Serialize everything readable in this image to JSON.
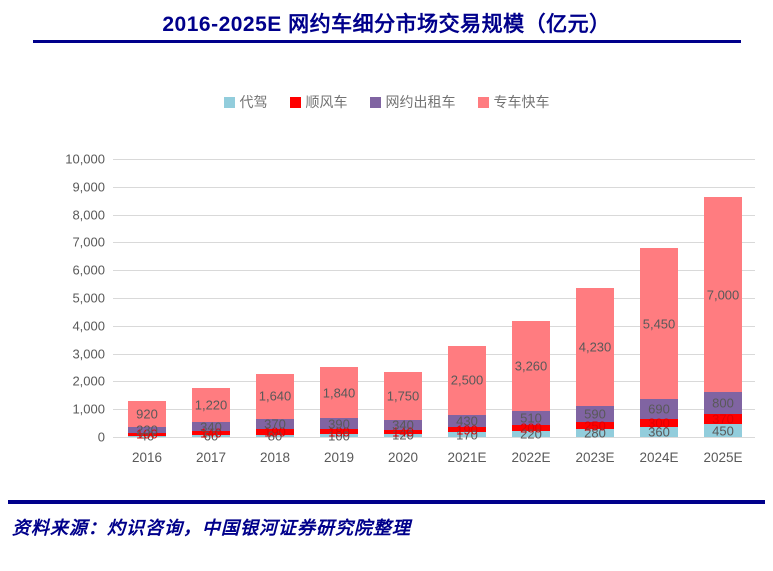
{
  "page": {
    "title": "2016-2025E 网约车细分市场交易规模（亿元）",
    "source_note": "资料来源：灼识咨询，中国银河证券研究院整理",
    "colors": {
      "navy": "#00008B",
      "grid": "#D9D9D9",
      "axis_text": "#595959",
      "legend_text": "#737373"
    }
  },
  "chart_data": {
    "type": "bar",
    "stacked": true,
    "title": "2016-2025E 网约车细分市场交易规模（亿元）",
    "unit": "亿元",
    "categories": [
      "2016",
      "2017",
      "2018",
      "2019",
      "2020",
      "2021E",
      "2022E",
      "2023E",
      "2024E",
      "2025E"
    ],
    "series": [
      {
        "name": "代驾",
        "color": "#92CDDC",
        "label_color": "#595959",
        "values": [
          40,
          60,
          80,
          100,
          120,
          170,
          220,
          280,
          360,
          450
        ]
      },
      {
        "name": "顺风车",
        "color": "#FF0000",
        "label_color": "#E00000",
        "values": [
          100,
          140,
          190,
          180,
          140,
          190,
          200,
          250,
          300,
          370
        ]
      },
      {
        "name": "网约出租车",
        "color": "#8064A2",
        "label_color": "#595959",
        "values": [
          230,
          340,
          370,
          390,
          340,
          430,
          510,
          590,
          690,
          800
        ]
      },
      {
        "name": "专车快车",
        "color": "#FF7C80",
        "label_color": "#595959",
        "values": [
          920,
          1220,
          1640,
          1840,
          1750,
          2500,
          3260,
          4230,
          5450,
          7000
        ]
      }
    ],
    "ylim": [
      0,
      10000
    ],
    "ytick_interval": 1000,
    "grid": true,
    "legend_position": "top"
  }
}
